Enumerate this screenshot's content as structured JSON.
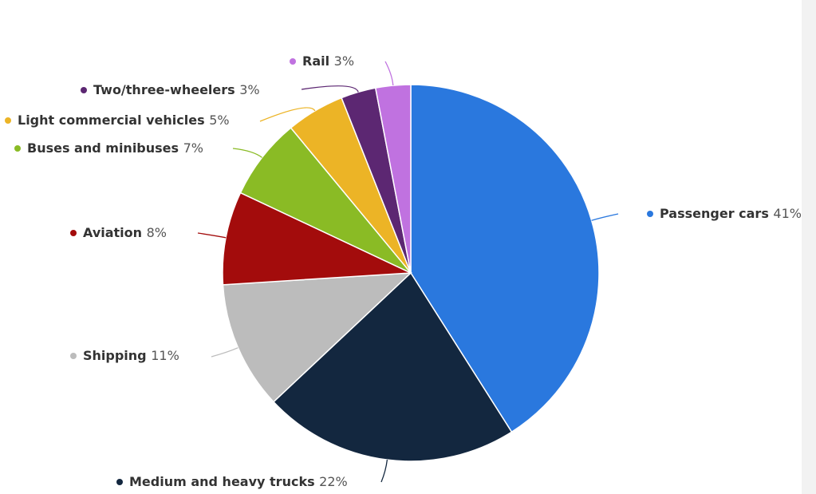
{
  "chart_data": {
    "type": "pie",
    "title": "",
    "unit": "%",
    "slices": [
      {
        "label": "Passenger cars",
        "value": 41,
        "color": "#2a78de"
      },
      {
        "label": "Medium and heavy trucks",
        "value": 22,
        "color": "#13273f"
      },
      {
        "label": "Shipping",
        "value": 11,
        "color": "#bcbcbc"
      },
      {
        "label": "Aviation",
        "value": 8,
        "color": "#a30c0c"
      },
      {
        "label": "Buses and minibuses",
        "value": 7,
        "color": "#8abb25"
      },
      {
        "label": "Light commercial vehicles",
        "value": 5,
        "color": "#ecb426"
      },
      {
        "label": "Two/three-wheelers",
        "value": 3,
        "color": "#5c2772"
      },
      {
        "label": "Rail",
        "value": 3,
        "color": "#c072e0"
      }
    ]
  }
}
